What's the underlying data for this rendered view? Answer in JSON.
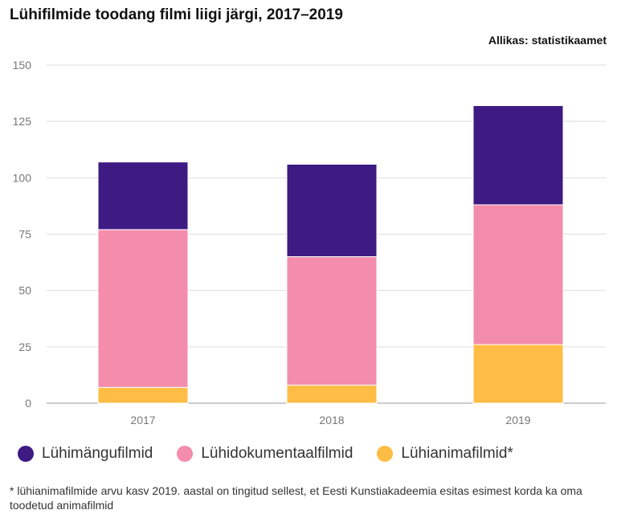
{
  "title": "Lühifilmide toodang filmi liigi järgi, 2017–2019",
  "source": "Allikas: statistikaamet",
  "footnote": "* lühianimafilmide arvu kasv 2019. aastal on tingitud sellest, et Eesti Kunstiakadeemia esitas esimest korda ka oma toodetud animafilmid",
  "chart_data": {
    "type": "bar",
    "stacked": true,
    "title": "Lühifilmide toodang filmi liigi järgi, 2017–2019",
    "xlabel": "",
    "ylabel": "",
    "categories": [
      "2017",
      "2018",
      "2019"
    ],
    "ylim": [
      0,
      150
    ],
    "yticks": [
      0,
      25,
      50,
      75,
      100,
      125,
      150
    ],
    "grid": true,
    "legend_position": "bottom",
    "series": [
      {
        "name": "Lühianimafilmid*",
        "color": "#FFBD45",
        "values": [
          7,
          8,
          26
        ]
      },
      {
        "name": "Lühidokumentaalfilmid",
        "color": "#F48CAB",
        "values": [
          70,
          57,
          62
        ]
      },
      {
        "name": "Lühimängufilmid",
        "color": "#3E1A83",
        "values": [
          30,
          41,
          44
        ]
      }
    ],
    "legend_order": [
      "Lühimängufilmid",
      "Lühidokumentaalfilmid",
      "Lühianimafilmid*"
    ]
  }
}
